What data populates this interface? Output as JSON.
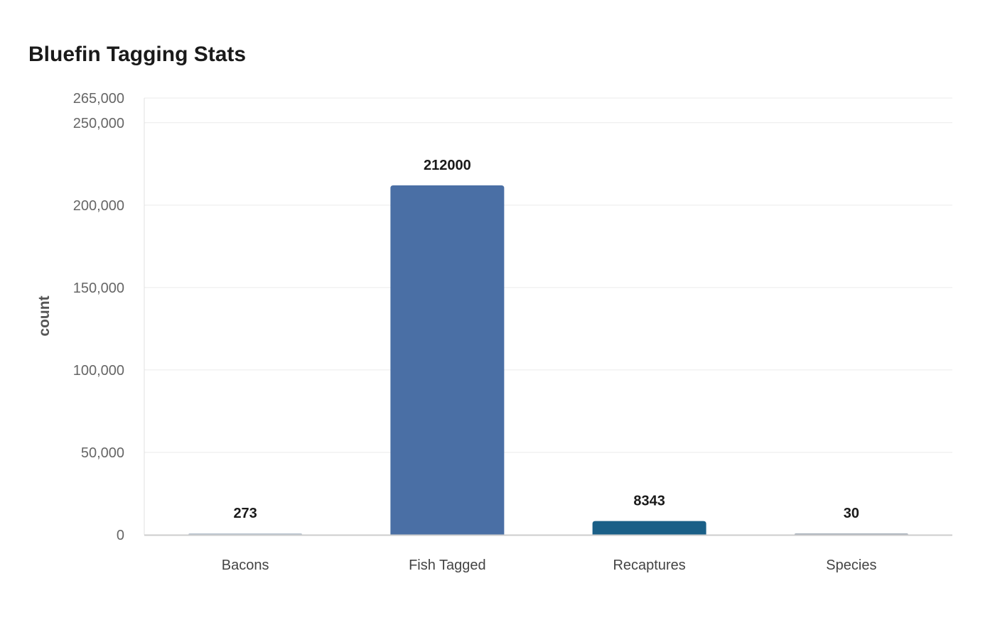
{
  "chart_data": {
    "type": "bar",
    "title": "Bluefin Tagging Stats",
    "xlabel": "",
    "ylabel": "count",
    "categories": [
      "Bacons",
      "Fish Tagged",
      "Recaptures",
      "Species"
    ],
    "values": [
      273,
      212000,
      8343,
      30
    ],
    "data_labels": [
      "273",
      "212000",
      "8343",
      "30"
    ],
    "colors": [
      "#b9c3cf",
      "#4a6fa5",
      "#1a5f87",
      "#a8b1bb"
    ],
    "ylim": [
      0,
      265000
    ],
    "yticks": [
      0,
      50000,
      100000,
      150000,
      200000,
      250000,
      265000
    ],
    "ytick_labels": [
      "0",
      "50,000",
      "100,000",
      "150,000",
      "200,000",
      "250,000",
      "265,000"
    ],
    "grid": true,
    "legend": "none"
  }
}
